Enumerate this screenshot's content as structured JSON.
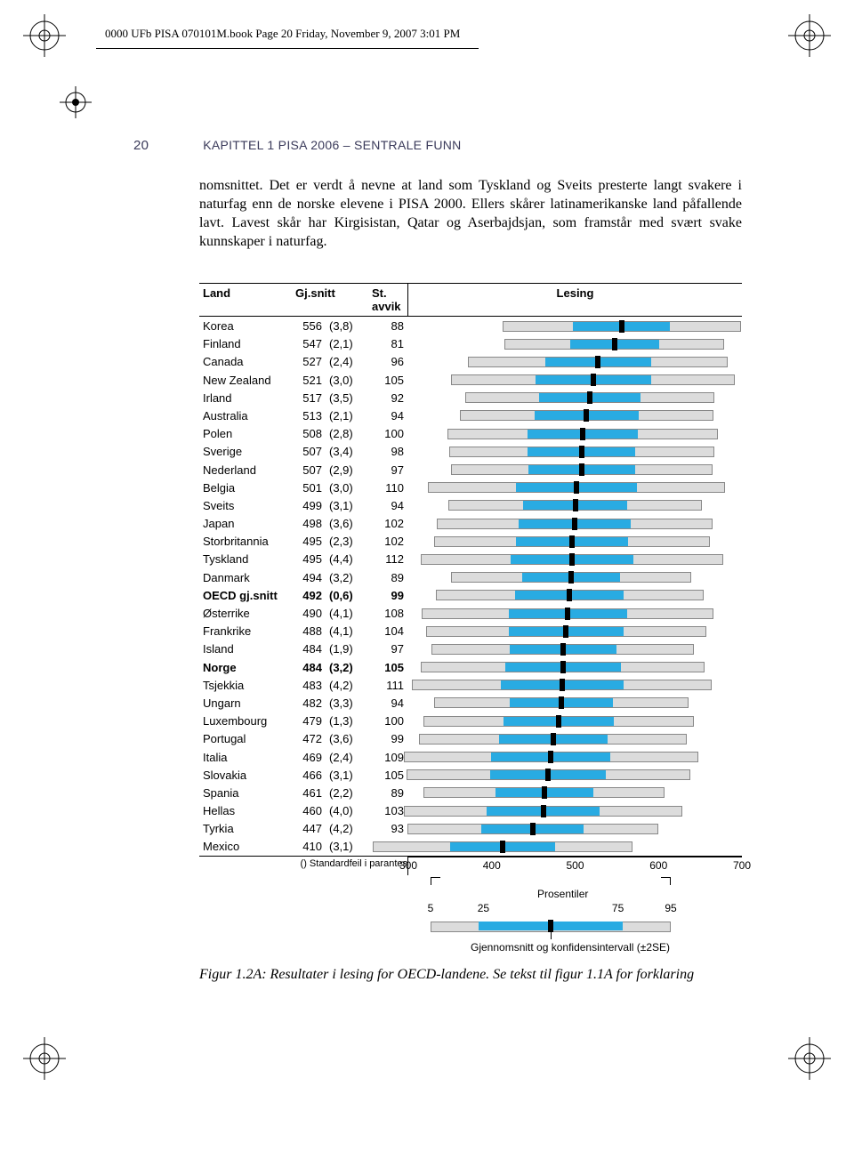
{
  "print_header": "0000 UFb PISA 070101M.book  Page 20  Friday, November 9, 2007  3:01 PM",
  "running_head": {
    "page": "20",
    "text": "KAPITTEL 1 PISA 2006 – SENTRALE FUNN"
  },
  "body_text": "nomsnittet. Det er verdt å nevne at land som Tyskland og Sveits pre­sterte langt svakere i naturfag enn de norske elevene i PISA 2000. Ellers skårer latinamerikanske land påfallende lavt. Lavest skår har Kirgisis­tan, Qatar og Aserbajdsjan, som framstår med svært svake kunnskaper i naturfag.",
  "table": {
    "headers": {
      "land": "Land",
      "snitt": "Gj.snitt",
      "avvik": "St. avvik",
      "chart": "Lesing"
    },
    "footnote": "() Standardfeil i parantes",
    "axis": {
      "min": 300,
      "max": 700,
      "ticks": [
        300,
        400,
        500,
        600,
        700
      ]
    },
    "bar_colors": {
      "outer": "#dcdcdc",
      "inner": "#29abe2",
      "mean": "#000000",
      "border": "#888888"
    },
    "rows": [
      {
        "land": "Korea",
        "snitt": 556,
        "se": "(3,8)",
        "avvik": 88,
        "bold": false
      },
      {
        "land": "Finland",
        "snitt": 547,
        "se": "(2,1)",
        "avvik": 81,
        "bold": false
      },
      {
        "land": "Canada",
        "snitt": 527,
        "se": "(2,4)",
        "avvik": 96,
        "bold": false
      },
      {
        "land": "New Zealand",
        "snitt": 521,
        "se": "(3,0)",
        "avvik": 105,
        "bold": false
      },
      {
        "land": "Irland",
        "snitt": 517,
        "se": "(3,5)",
        "avvik": 92,
        "bold": false
      },
      {
        "land": "Australia",
        "snitt": 513,
        "se": "(2,1)",
        "avvik": 94,
        "bold": false
      },
      {
        "land": "Polen",
        "snitt": 508,
        "se": "(2,8)",
        "avvik": 100,
        "bold": false
      },
      {
        "land": "Sverige",
        "snitt": 507,
        "se": "(3,4)",
        "avvik": 98,
        "bold": false
      },
      {
        "land": "Nederland",
        "snitt": 507,
        "se": "(2,9)",
        "avvik": 97,
        "bold": false
      },
      {
        "land": "Belgia",
        "snitt": 501,
        "se": "(3,0)",
        "avvik": 110,
        "bold": false
      },
      {
        "land": "Sveits",
        "snitt": 499,
        "se": "(3,1)",
        "avvik": 94,
        "bold": false
      },
      {
        "land": "Japan",
        "snitt": 498,
        "se": "(3,6)",
        "avvik": 102,
        "bold": false
      },
      {
        "land": "Storbritannia",
        "snitt": 495,
        "se": "(2,3)",
        "avvik": 102,
        "bold": false
      },
      {
        "land": "Tyskland",
        "snitt": 495,
        "se": "(4,4)",
        "avvik": 112,
        "bold": false
      },
      {
        "land": "Danmark",
        "snitt": 494,
        "se": "(3,2)",
        "avvik": 89,
        "bold": false
      },
      {
        "land": "OECD gj.snitt",
        "snitt": 492,
        "se": "(0,6)",
        "avvik": 99,
        "bold": true
      },
      {
        "land": "Østerrike",
        "snitt": 490,
        "se": "(4,1)",
        "avvik": 108,
        "bold": false
      },
      {
        "land": "Frankrike",
        "snitt": 488,
        "se": "(4,1)",
        "avvik": 104,
        "bold": false
      },
      {
        "land": "Island",
        "snitt": 484,
        "se": "(1,9)",
        "avvik": 97,
        "bold": false
      },
      {
        "land": "Norge",
        "snitt": 484,
        "se": "(3,2)",
        "avvik": 105,
        "bold": true
      },
      {
        "land": "Tsjekkia",
        "snitt": 483,
        "se": "(4,2)",
        "avvik": 111,
        "bold": false
      },
      {
        "land": "Ungarn",
        "snitt": 482,
        "se": "(3,3)",
        "avvik": 94,
        "bold": false
      },
      {
        "land": "Luxembourg",
        "snitt": 479,
        "se": "(1,3)",
        "avvik": 100,
        "bold": false
      },
      {
        "land": "Portugal",
        "snitt": 472,
        "se": "(3,6)",
        "avvik": 99,
        "bold": false
      },
      {
        "land": "Italia",
        "snitt": 469,
        "se": "(2,4)",
        "avvik": 109,
        "bold": false
      },
      {
        "land": "Slovakia",
        "snitt": 466,
        "se": "(3,1)",
        "avvik": 105,
        "bold": false
      },
      {
        "land": "Spania",
        "snitt": 461,
        "se": "(2,2)",
        "avvik": 89,
        "bold": false
      },
      {
        "land": "Hellas",
        "snitt": 460,
        "se": "(4,0)",
        "avvik": 103,
        "bold": false
      },
      {
        "land": "Tyrkia",
        "snitt": 447,
        "se": "(4,2)",
        "avvik": 93,
        "bold": false
      },
      {
        "land": "Mexico",
        "snitt": 410,
        "se": "(3,1)",
        "avvik": 96,
        "bold": false
      }
    ]
  },
  "legend": {
    "prosentiler_label": "Prosentiler",
    "p_ticks": [
      "5",
      "25",
      "75",
      "95"
    ],
    "ci_label": "Gjennomsnitt og konfidensintervall (±2SE)"
  },
  "caption": "Figur 1.2A:   Resultater i lesing for OECD-landene. Se tekst til figur 1.1A for forklaring"
}
